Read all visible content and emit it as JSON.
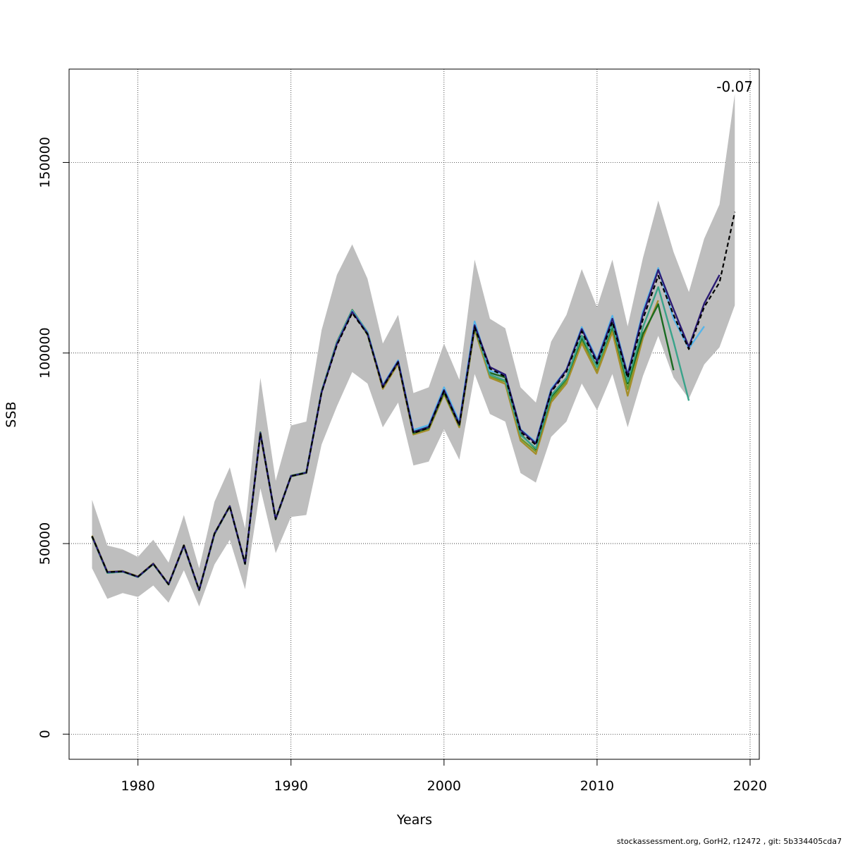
{
  "chart_data": {
    "type": "line",
    "title": "",
    "xlabel": "Years",
    "ylabel": "SSB",
    "xlim": [
      1975.5,
      2020.6
    ],
    "ylim": [
      -6600,
      174500
    ],
    "x_ticks": [
      1980,
      1990,
      2000,
      2010,
      2020
    ],
    "y_ticks": [
      0,
      50000,
      100000,
      150000
    ],
    "grid": true,
    "legend": "none",
    "annotation": "-0.07",
    "footer": "stockassessment.org, GorH2, r12472 , git: 5b334405cda7",
    "band_color": "#bebebe",
    "band": {
      "x": [
        1977,
        1978,
        1979,
        1980,
        1981,
        1982,
        1983,
        1984,
        1985,
        1986,
        1987,
        1988,
        1989,
        1990,
        1991,
        1992,
        1993,
        1994,
        1995,
        1996,
        1997,
        1998,
        1999,
        2000,
        2001,
        2002,
        2003,
        2004,
        2005,
        2006,
        2007,
        2008,
        2009,
        2010,
        2011,
        2012,
        2013,
        2014,
        2015,
        2016,
        2017,
        2018,
        2019
      ],
      "upper": [
        61500,
        49500,
        48500,
        46500,
        51000,
        45000,
        57500,
        43500,
        61000,
        70000,
        54000,
        93500,
        66500,
        81000,
        82000,
        106000,
        120500,
        128500,
        119500,
        102500,
        110000,
        89500,
        91000,
        102500,
        93000,
        124500,
        109000,
        106500,
        91000,
        87000,
        103000,
        110000,
        122000,
        112000,
        124500,
        107000,
        125000,
        140000,
        126500,
        116000,
        130000,
        139000,
        168000
      ],
      "lower": [
        43500,
        35500,
        37000,
        36000,
        39000,
        34500,
        43000,
        33500,
        44500,
        51000,
        38000,
        64500,
        47500,
        57000,
        57500,
        76000,
        86000,
        95000,
        92000,
        80500,
        87000,
        70500,
        71500,
        80000,
        72000,
        94500,
        84000,
        82000,
        68500,
        66000,
        78000,
        82000,
        92000,
        85000,
        94500,
        80500,
        94000,
        104500,
        93500,
        88000,
        97000,
        101500,
        112500
      ]
    },
    "series": [
      {
        "color": "#000000",
        "dash": true,
        "x": [
          1977,
          1978,
          1979,
          1980,
          1981,
          1982,
          1983,
          1984,
          1985,
          1986,
          1987,
          1988,
          1989,
          1990,
          1991,
          1992,
          1993,
          1994,
          1995,
          1996,
          1997,
          1998,
          1999,
          2000,
          2001,
          2002,
          2003,
          2004,
          2005,
          2006,
          2007,
          2008,
          2009,
          2010,
          2011,
          2012,
          2013,
          2014,
          2015,
          2016,
          2017,
          2018,
          2019
        ],
        "y": [
          51900,
          42500,
          42700,
          41300,
          44700,
          39300,
          49500,
          37800,
          52600,
          59800,
          44700,
          79000,
          56400,
          67700,
          68600,
          89700,
          102100,
          110500,
          104900,
          91000,
          97500,
          79000,
          80400,
          90000,
          81000,
          106800,
          95900,
          93800,
          79300,
          75900,
          89800,
          95100,
          105700,
          97200,
          108200,
          93500,
          108900,
          120300,
          110000,
          101000,
          112100,
          118500,
          137000
        ]
      },
      {
        "color": "#2b1b75",
        "x": [
          1977,
          1978,
          1979,
          1980,
          1981,
          1982,
          1983,
          1984,
          1985,
          1986,
          1987,
          1988,
          1989,
          1990,
          1991,
          1992,
          1993,
          1994,
          1995,
          1996,
          1997,
          1998,
          1999,
          2000,
          2001,
          2002,
          2003,
          2004,
          2005,
          2006,
          2007,
          2008,
          2009,
          2010,
          2011,
          2012,
          2013,
          2014,
          2015,
          2016,
          2017,
          2018
        ],
        "y": [
          51900,
          42500,
          42700,
          41300,
          44700,
          39300,
          49500,
          37800,
          52600,
          59800,
          44700,
          79000,
          56400,
          67700,
          68600,
          89700,
          102400,
          110800,
          105100,
          91300,
          97800,
          79300,
          80600,
          90300,
          81300,
          107300,
          96300,
          94300,
          79800,
          76300,
          90200,
          95600,
          106300,
          97800,
          109000,
          94200,
          110200,
          121800,
          111500,
          101600,
          113000,
          120500
        ]
      },
      {
        "color": "#56b4e9",
        "x": [
          1977,
          1978,
          1979,
          1980,
          1981,
          1982,
          1983,
          1984,
          1985,
          1986,
          1987,
          1988,
          1989,
          1990,
          1991,
          1992,
          1993,
          1994,
          1995,
          1996,
          1997,
          1998,
          1999,
          2000,
          2001,
          2002,
          2003,
          2004,
          2005,
          2006,
          2007,
          2008,
          2009,
          2010,
          2011,
          2012,
          2013,
          2014,
          2015,
          2016,
          2017
        ],
        "y": [
          51900,
          42500,
          42700,
          41300,
          44700,
          39300,
          49500,
          37800,
          52600,
          59800,
          44700,
          79000,
          56400,
          67700,
          68600,
          89800,
          102600,
          111000,
          105300,
          91600,
          98100,
          79800,
          81100,
          91000,
          82000,
          108300,
          95300,
          94300,
          80000,
          76600,
          90600,
          95700,
          106800,
          98300,
          109800,
          94500,
          111000,
          122300,
          109000,
          101200,
          107000
        ]
      },
      {
        "color": "#3aa38a",
        "x": [
          1977,
          1978,
          1979,
          1980,
          1981,
          1982,
          1983,
          1984,
          1985,
          1986,
          1987,
          1988,
          1989,
          1990,
          1991,
          1992,
          1993,
          1994,
          1995,
          1996,
          1997,
          1998,
          1999,
          2000,
          2001,
          2002,
          2003,
          2004,
          2005,
          2006,
          2007,
          2008,
          2009,
          2010,
          2011,
          2012,
          2013,
          2014,
          2015,
          2016
        ],
        "y": [
          51900,
          42300,
          42600,
          41200,
          44600,
          39300,
          49400,
          37800,
          52500,
          59800,
          44700,
          79000,
          56400,
          67700,
          68700,
          89900,
          102800,
          111200,
          105500,
          91400,
          98000,
          79500,
          80800,
          90500,
          81500,
          107200,
          94300,
          92800,
          78500,
          75000,
          88900,
          93500,
          104600,
          96300,
          107500,
          92500,
          106800,
          117300,
          103000,
          87500
        ]
      },
      {
        "color": "#1a6b22",
        "x": [
          1977,
          1978,
          1979,
          1980,
          1981,
          1982,
          1983,
          1984,
          1985,
          1986,
          1987,
          1988,
          1989,
          1990,
          1991,
          1992,
          1993,
          1994,
          1995,
          1996,
          1997,
          1998,
          1999,
          2000,
          2001,
          2002,
          2003,
          2004,
          2005,
          2006,
          2007,
          2008,
          2009,
          2010,
          2011,
          2012,
          2013,
          2014,
          2015
        ],
        "y": [
          51900,
          42500,
          42700,
          41300,
          44700,
          39300,
          49500,
          37800,
          52600,
          59800,
          44700,
          79200,
          56500,
          67800,
          68700,
          90000,
          102900,
          111300,
          105400,
          91100,
          97700,
          79000,
          80300,
          89700,
          81000,
          106800,
          94800,
          93600,
          78700,
          74800,
          88500,
          93300,
          104000,
          96500,
          107000,
          92000,
          105000,
          112800,
          95500
        ]
      },
      {
        "color": "#a58e2a",
        "x": [
          1977,
          1978,
          1979,
          1980,
          1981,
          1982,
          1983,
          1984,
          1985,
          1986,
          1987,
          1988,
          1989,
          1990,
          1991,
          1992,
          1993,
          1994,
          1995,
          1996,
          1997,
          1998,
          1999,
          2000,
          2001,
          2002,
          2003,
          2004,
          2005,
          2006,
          2007,
          2008,
          2009,
          2010,
          2011,
          2012,
          2013,
          2014
        ],
        "y": [
          52100,
          42600,
          42800,
          41400,
          44800,
          39400,
          49600,
          37900,
          52700,
          59900,
          44800,
          78500,
          56600,
          67700,
          68700,
          89900,
          102900,
          111200,
          105200,
          90600,
          97200,
          78600,
          79800,
          89200,
          80500,
          106200,
          93500,
          91900,
          77000,
          73500,
          87100,
          92000,
          102600,
          94700,
          105500,
          88800,
          104000,
          113800
        ]
      },
      {
        "color": "#6a9a2a",
        "x": [
          1977,
          1978,
          1979,
          1980,
          1981,
          1982,
          1983,
          1984,
          1985,
          1986,
          1987,
          1988,
          1989,
          1990,
          1991,
          1992,
          1993,
          1994,
          1995,
          1996,
          1997,
          1998,
          1999,
          2000,
          2001,
          2002,
          2003,
          2004,
          2005,
          2006,
          2007,
          2008,
          2009,
          2010,
          2011,
          2012,
          2013
        ],
        "y": [
          51700,
          42300,
          42600,
          41200,
          44600,
          39200,
          49300,
          37700,
          52400,
          59700,
          44600,
          78700,
          56300,
          67600,
          68500,
          89800,
          102700,
          111000,
          104800,
          90800,
          97300,
          79000,
          80200,
          89600,
          80800,
          106400,
          93800,
          92500,
          77600,
          74200,
          87800,
          92600,
          103200,
          95200,
          106300,
          90500,
          105500
        ]
      }
    ]
  }
}
